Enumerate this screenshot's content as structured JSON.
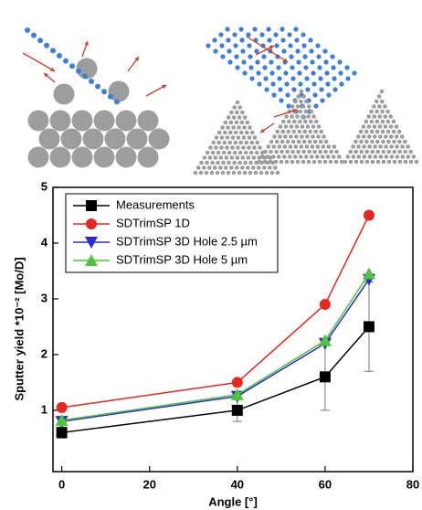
{
  "chart_data": {
    "type": "line",
    "x_label": "Angle [°]",
    "y_label": "Sputter yield *10⁻² [Mo/D]",
    "x": [
      0,
      40,
      60,
      70
    ],
    "series": [
      {
        "name": "Measurements",
        "color": "#000000",
        "marker": "square",
        "values": [
          0.6,
          1.0,
          1.6,
          2.5
        ],
        "errors": [
          0.1,
          0.2,
          0.6,
          0.8
        ]
      },
      {
        "name": "SDTrimSP 1D",
        "color": "#e8251e",
        "marker": "circle",
        "values": [
          1.05,
          1.5,
          2.9,
          4.5
        ]
      },
      {
        "name": "SDTrimSP 3D Hole 2.5 µm",
        "color": "#2a2ad6",
        "marker": "triangle-down",
        "values": [
          0.8,
          1.25,
          2.2,
          3.35
        ]
      },
      {
        "name": "SDTrimSP 3D Hole 5 µm",
        "color": "#4fc43a",
        "marker": "triangle-up",
        "values": [
          0.82,
          1.28,
          2.25,
          3.45
        ]
      }
    ],
    "xlim": [
      -2,
      80
    ],
    "ylim": [
      -0.1,
      5
    ],
    "xticks": [
      0,
      20,
      40,
      60,
      80
    ],
    "yticks": [
      1,
      2,
      3,
      4,
      5
    ],
    "legend": "upper left"
  }
}
